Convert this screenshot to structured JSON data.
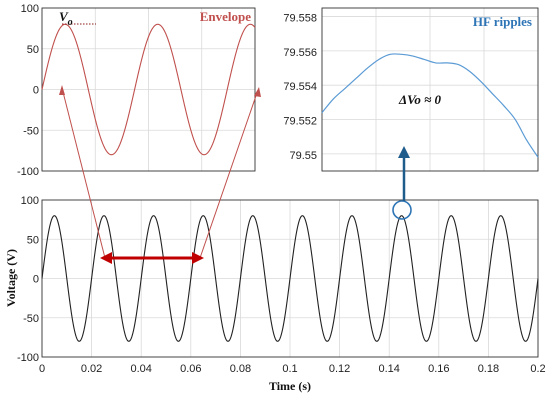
{
  "chart_data": [
    {
      "id": "main",
      "type": "line",
      "xlabel": "Time (s)",
      "ylabel": "Voltage (V)",
      "xlim": [
        0,
        0.2
      ],
      "ylim": [
        -100,
        100
      ],
      "xticks": [
        0,
        0.02,
        0.04,
        0.06,
        0.08,
        0.1,
        0.12,
        0.14,
        0.16,
        0.18,
        0.2
      ],
      "yticks": [
        -100,
        -50,
        0,
        50,
        100
      ],
      "xtick_labels": [
        "0",
        "0.02",
        "0.04",
        "0.06",
        "0.08",
        "0.1",
        "0.12",
        "0.14",
        "0.16",
        "0.18",
        "0.2"
      ],
      "ytick_labels": [
        "-100",
        "-50",
        "0",
        "50",
        "100"
      ],
      "grid": true,
      "series": [
        {
          "amplitude": 80,
          "frequency_hz": 50,
          "color": "#222222"
        }
      ]
    },
    {
      "id": "envelope-inset",
      "type": "line",
      "label": "Envelope",
      "annotation": "V",
      "annotation_subscript": "o",
      "xlim": [
        0,
        0.1
      ],
      "ylim": [
        -100,
        100
      ],
      "yticks": [
        -100,
        -50,
        0,
        50,
        100
      ],
      "ytick_labels": [
        "-100",
        "-50",
        "0",
        "50",
        "100"
      ],
      "grid": true,
      "series": [
        {
          "amplitude": 80,
          "frequency_hz": 23,
          "color": "#c0504d"
        }
      ]
    },
    {
      "id": "hf-inset",
      "type": "line",
      "label": "HF ripples",
      "annotation": "ΔVo ≈ 0",
      "ylim": [
        79.549,
        79.5585
      ],
      "yticks": [
        79.55,
        79.552,
        79.554,
        79.556,
        79.558
      ],
      "ytick_labels": [
        "79.55",
        "79.552",
        "79.554",
        "79.556",
        "79.558"
      ],
      "grid": true,
      "series": [
        {
          "color": "#5b9bd5",
          "y": [
            79.5524,
            79.5532,
            79.5538,
            79.5544,
            79.555,
            79.5555,
            79.5558,
            79.5558,
            79.5557,
            79.5555,
            79.5553,
            79.5553,
            79.5552,
            79.5548,
            79.5542,
            79.5535,
            79.5528,
            79.552,
            79.5508,
            79.5498
          ]
        }
      ]
    }
  ],
  "colors": {
    "main_line": "#222222",
    "envelope_line": "#c0504d",
    "envelope_label": "#c0504d",
    "hf_line": "#5b9bd5",
    "hf_label": "#2e75b6",
    "arrow_red": "#c00000",
    "arrow_blue": "#1f5c8c",
    "circle": "#2e75b6"
  }
}
